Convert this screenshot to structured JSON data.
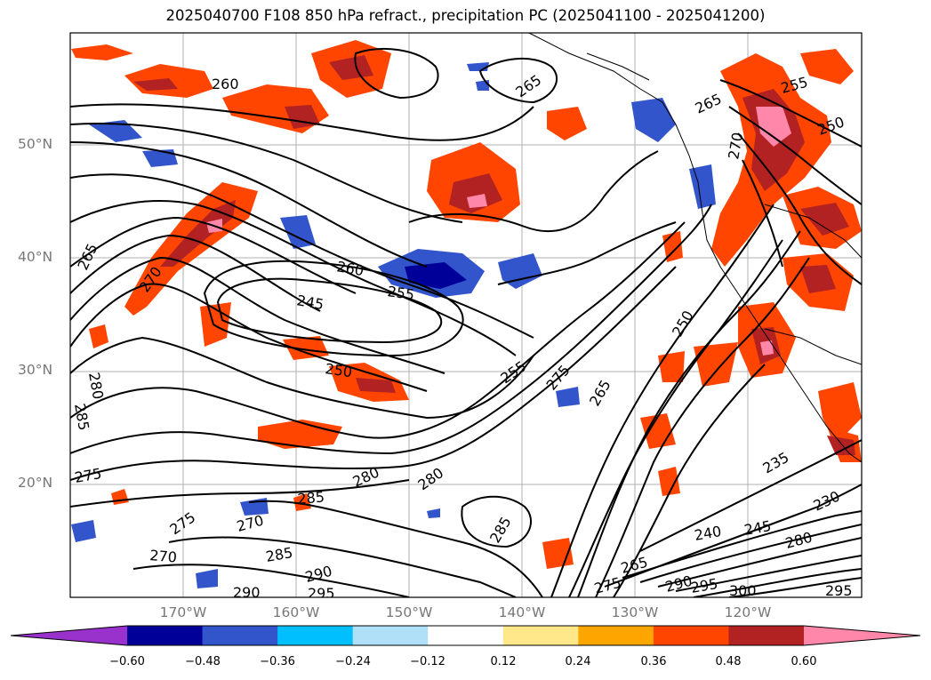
{
  "title": "2025040700 F108 850 hPa refract., precipitation PC (2025041100 - 2025041200)",
  "lat_labels": [
    "50°N",
    "40°N",
    "30°N",
    "20°N"
  ],
  "lon_labels": [
    "170°W",
    "160°W",
    "150°W",
    "140°W",
    "130°W",
    "120°W"
  ],
  "contour_labels": [
    "260",
    "265",
    "265",
    "255",
    "250",
    "270",
    "270",
    "265",
    "245",
    "260",
    "255",
    "250",
    "255",
    "275",
    "265",
    "250",
    "285",
    "280",
    "275",
    "280",
    "280",
    "285",
    "275",
    "285",
    "270",
    "270",
    "285",
    "290",
    "290",
    "295",
    "240",
    "245",
    "235",
    "230",
    "280",
    "300",
    "295",
    "275",
    "290",
    "295",
    "265"
  ],
  "colorbar": {
    "ticks": [
      "−0.60",
      "−0.48",
      "−0.36",
      "−0.24",
      "−0.12",
      "0.12",
      "0.24",
      "0.36",
      "0.48",
      "0.60"
    ],
    "colors": [
      "#9932cc",
      "#000099",
      "#3355cc",
      "#00bfff",
      "#b0e0f8",
      "#ffffff",
      "#ffe88a",
      "#ffa500",
      "#ff4500",
      "#b22222",
      "#ff88aa"
    ]
  }
}
